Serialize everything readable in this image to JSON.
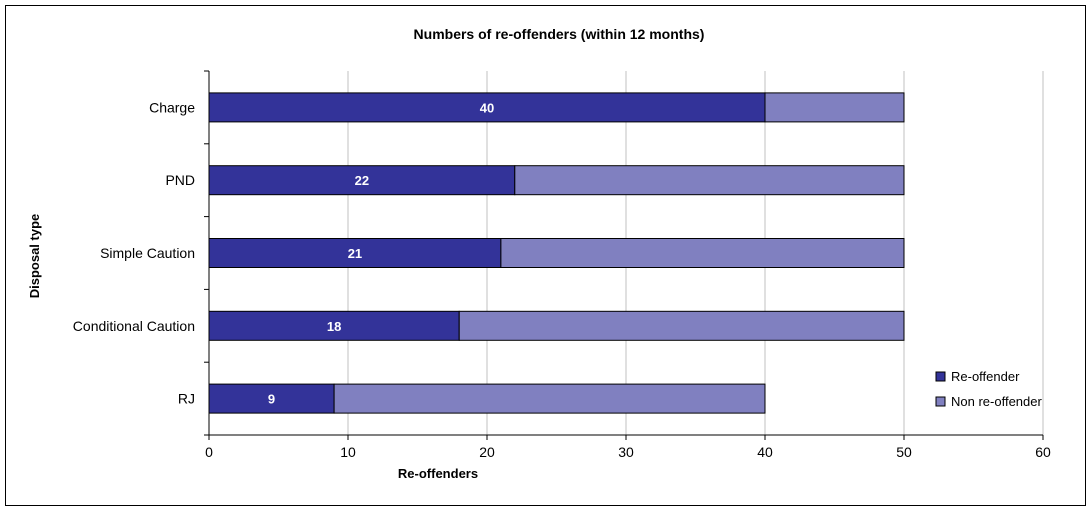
{
  "chart_data": {
    "type": "bar",
    "orientation": "horizontal",
    "stacked": true,
    "title": "Numbers of re-offenders (within 12 months)",
    "xlabel": "Re-offenders",
    "ylabel": "Disposal type",
    "xlim": [
      0,
      60
    ],
    "xticks": [
      0,
      10,
      20,
      30,
      40,
      50,
      60
    ],
    "grid": true,
    "legend_position": "bottom-right",
    "categories": [
      "Charge",
      "PND",
      "Simple Caution",
      "Conditional Caution",
      "RJ"
    ],
    "series": [
      {
        "name": "Re-offender",
        "color": "#333399",
        "values": [
          40,
          22,
          21,
          18,
          9
        ],
        "show_labels": true
      },
      {
        "name": "Non re-offender",
        "color": "#8080C0",
        "values": [
          10,
          28,
          29,
          32,
          31
        ],
        "show_labels": false
      }
    ]
  }
}
